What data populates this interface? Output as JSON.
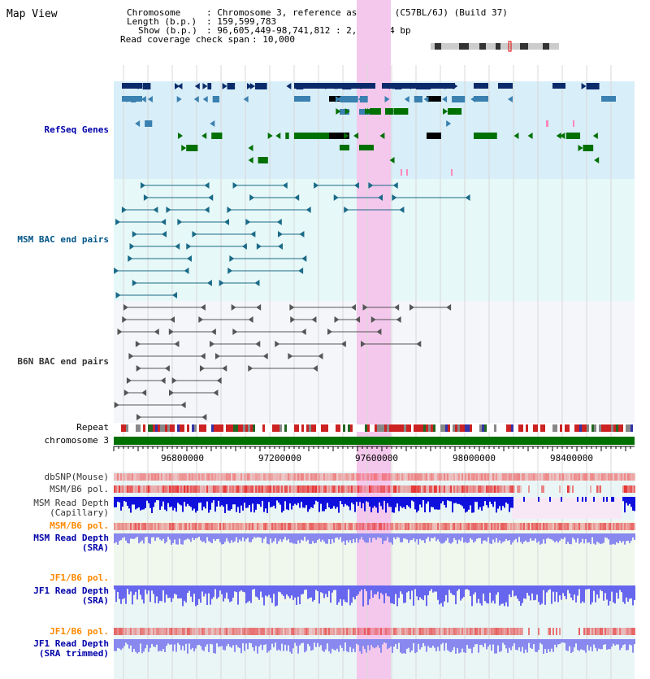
{
  "title": "Map View",
  "info": {
    "chromosome_key": "Chromosome",
    "chromosome_val": ": Chromosome 3, reference assembly (C57BL/6J) (Build 37)",
    "length_key": "Length (b.p.)",
    "length_val": ": 159,599,783",
    "show_key": "Show (b.p.)",
    "show_val": ": 96,605,449-98,741,812 : 2,136,364 bp",
    "coverage_key": "Read coverage check span",
    "coverage_val": ": 10,000"
  },
  "tracks": {
    "refseq": "RefSeq Genes",
    "msm_bac": "MSM BAC end pairs",
    "b6n_bac": "B6N BAC end pairs",
    "repeat": "Repeat",
    "chromosome": "chromosome 3",
    "dbsnp": "dbSNP(Mouse)",
    "msm_b6_pol": "MSM/B6 pol.",
    "msm_read_depth_cap_1": "MSM Read Depth",
    "msm_read_depth_cap_2": "(Capillary)",
    "msm_b6_pol_sra": "MSM/B6 pol.",
    "msm_read_depth_sra_1": "MSM Read Depth",
    "msm_read_depth_sra_2": "(SRA)",
    "jf1_b6_pol": "JF1/B6 pol.",
    "jf1_read_depth_1": "JF1 Read Depth",
    "jf1_read_depth_2": "(SRA)",
    "jf1_b6_pol_2": "JF1/B6 pol.",
    "jf1_read_depth_trim_1": "JF1 Read Depth",
    "jf1_read_depth_trim_2": "(SRA trimmed)"
  },
  "axis": {
    "ticks": [
      "96800000",
      "97200000",
      "97600000",
      "98000000",
      "98400000"
    ]
  },
  "colors": {
    "refseq_bg": "#d8eef8",
    "msm_bg": "#e6f8f8",
    "b6n_bg": "#f4f6fa",
    "highlight": "#f4c8ec",
    "gene_dark": "#0a2a6a",
    "gene_mid": "#3a80b0",
    "gene_green": "#007000",
    "msm_line": "#1a6a88",
    "b6n_line": "#555555",
    "chromosome_bar": "#007000"
  }
}
